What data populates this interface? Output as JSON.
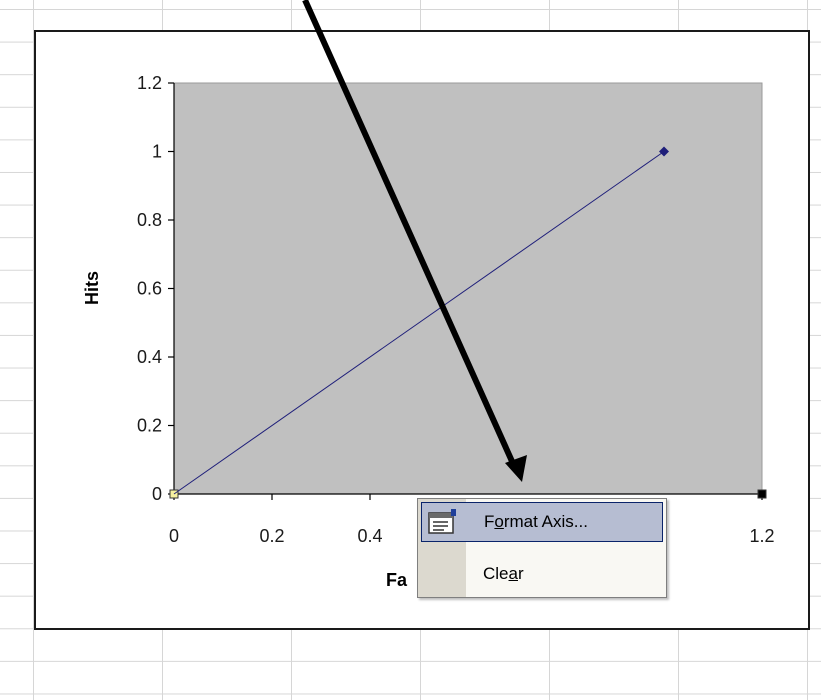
{
  "chart_data": {
    "type": "line",
    "series": [
      {
        "x": [
          0,
          1
        ],
        "y": [
          0,
          1
        ],
        "color": "#1f1f7a"
      }
    ],
    "xlabel": "Fa",
    "ylabel": "Hits",
    "xlim": [
      0,
      1.2
    ],
    "ylim": [
      0,
      1.2
    ],
    "xticks": [
      "0",
      "0.2",
      "0.4",
      "1.2"
    ],
    "yticks": [
      "0",
      "0.2",
      "0.4",
      "0.6",
      "0.8",
      "1",
      "1.2"
    ],
    "plot_background": "#c0c0c0",
    "grid": false,
    "legend": "none"
  },
  "context_menu": {
    "items": [
      {
        "pre": "F",
        "accel": "o",
        "post": "rmat Axis...",
        "icon": "format-axis-icon",
        "selected": true
      },
      {
        "pre": "Cle",
        "accel": "a",
        "post": "r",
        "icon": "",
        "selected": false
      }
    ]
  },
  "annotation": {
    "arrow": "pointer-arrow-icon",
    "color": "#000000"
  },
  "colors": {
    "plot_area": "#c0c0c0",
    "series_line": "#1f1f7a",
    "menu_highlight": "#b6bdd2",
    "menu_gutter": "#dcd9cf"
  }
}
